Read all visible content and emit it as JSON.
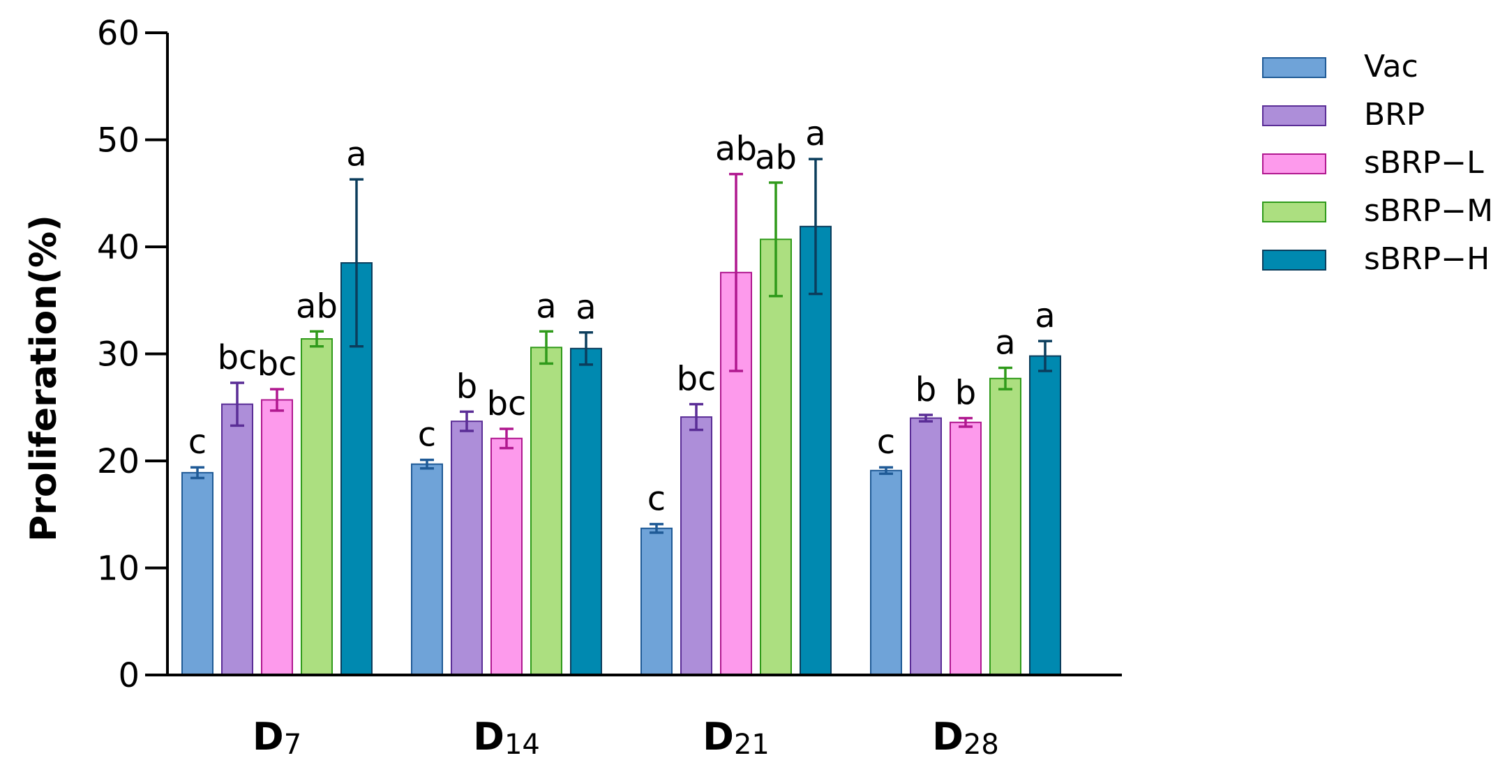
{
  "chart_data": {
    "type": "bar",
    "ylabel": "Proliferation(%)",
    "ylim": [
      0,
      60
    ],
    "yticks": [
      0,
      10,
      20,
      30,
      40,
      50,
      60
    ],
    "legend_position": "top-right",
    "categories": [
      {
        "main": "D",
        "sub": "7"
      },
      {
        "main": "D",
        "sub": "14"
      },
      {
        "main": "D",
        "sub": "21"
      },
      {
        "main": "D",
        "sub": "28"
      }
    ],
    "series": [
      {
        "name": "Vac",
        "color": "#6fa3d8",
        "stroke": "#1f5a96",
        "values": [
          18.9,
          19.7,
          13.7,
          19.1
        ],
        "errors": [
          0.5,
          0.4,
          0.4,
          0.3
        ],
        "labels": [
          "c",
          "c",
          "c",
          "c"
        ]
      },
      {
        "name": "BRP",
        "color": "#ad8ed9",
        "stroke": "#5a2d96",
        "values": [
          25.3,
          23.7,
          24.1,
          24.0
        ],
        "errors": [
          2.0,
          0.9,
          1.2,
          0.3
        ],
        "labels": [
          "bc",
          "b",
          "bc",
          "b"
        ]
      },
      {
        "name": "sBRP−L",
        "color": "#fd9aec",
        "stroke": "#b0188f",
        "values": [
          25.7,
          22.1,
          37.6,
          23.6
        ],
        "errors": [
          1.0,
          0.9,
          9.2,
          0.4
        ],
        "labels": [
          "bc",
          "bc",
          "ab",
          "b"
        ]
      },
      {
        "name": "sBRP−M",
        "color": "#acdf80",
        "stroke": "#2f9a1a",
        "values": [
          31.4,
          30.6,
          40.7,
          27.7
        ],
        "errors": [
          0.7,
          1.5,
          5.3,
          1.0
        ],
        "labels": [
          "ab",
          "a",
          "ab",
          "a"
        ]
      },
      {
        "name": "sBRP−H",
        "color": "#0089b0",
        "stroke": "#0b3d5c",
        "values": [
          38.5,
          30.5,
          41.9,
          29.8
        ],
        "errors": [
          7.8,
          1.5,
          6.3,
          1.4
        ],
        "labels": [
          "a",
          "a",
          "a",
          "a"
        ]
      }
    ]
  }
}
